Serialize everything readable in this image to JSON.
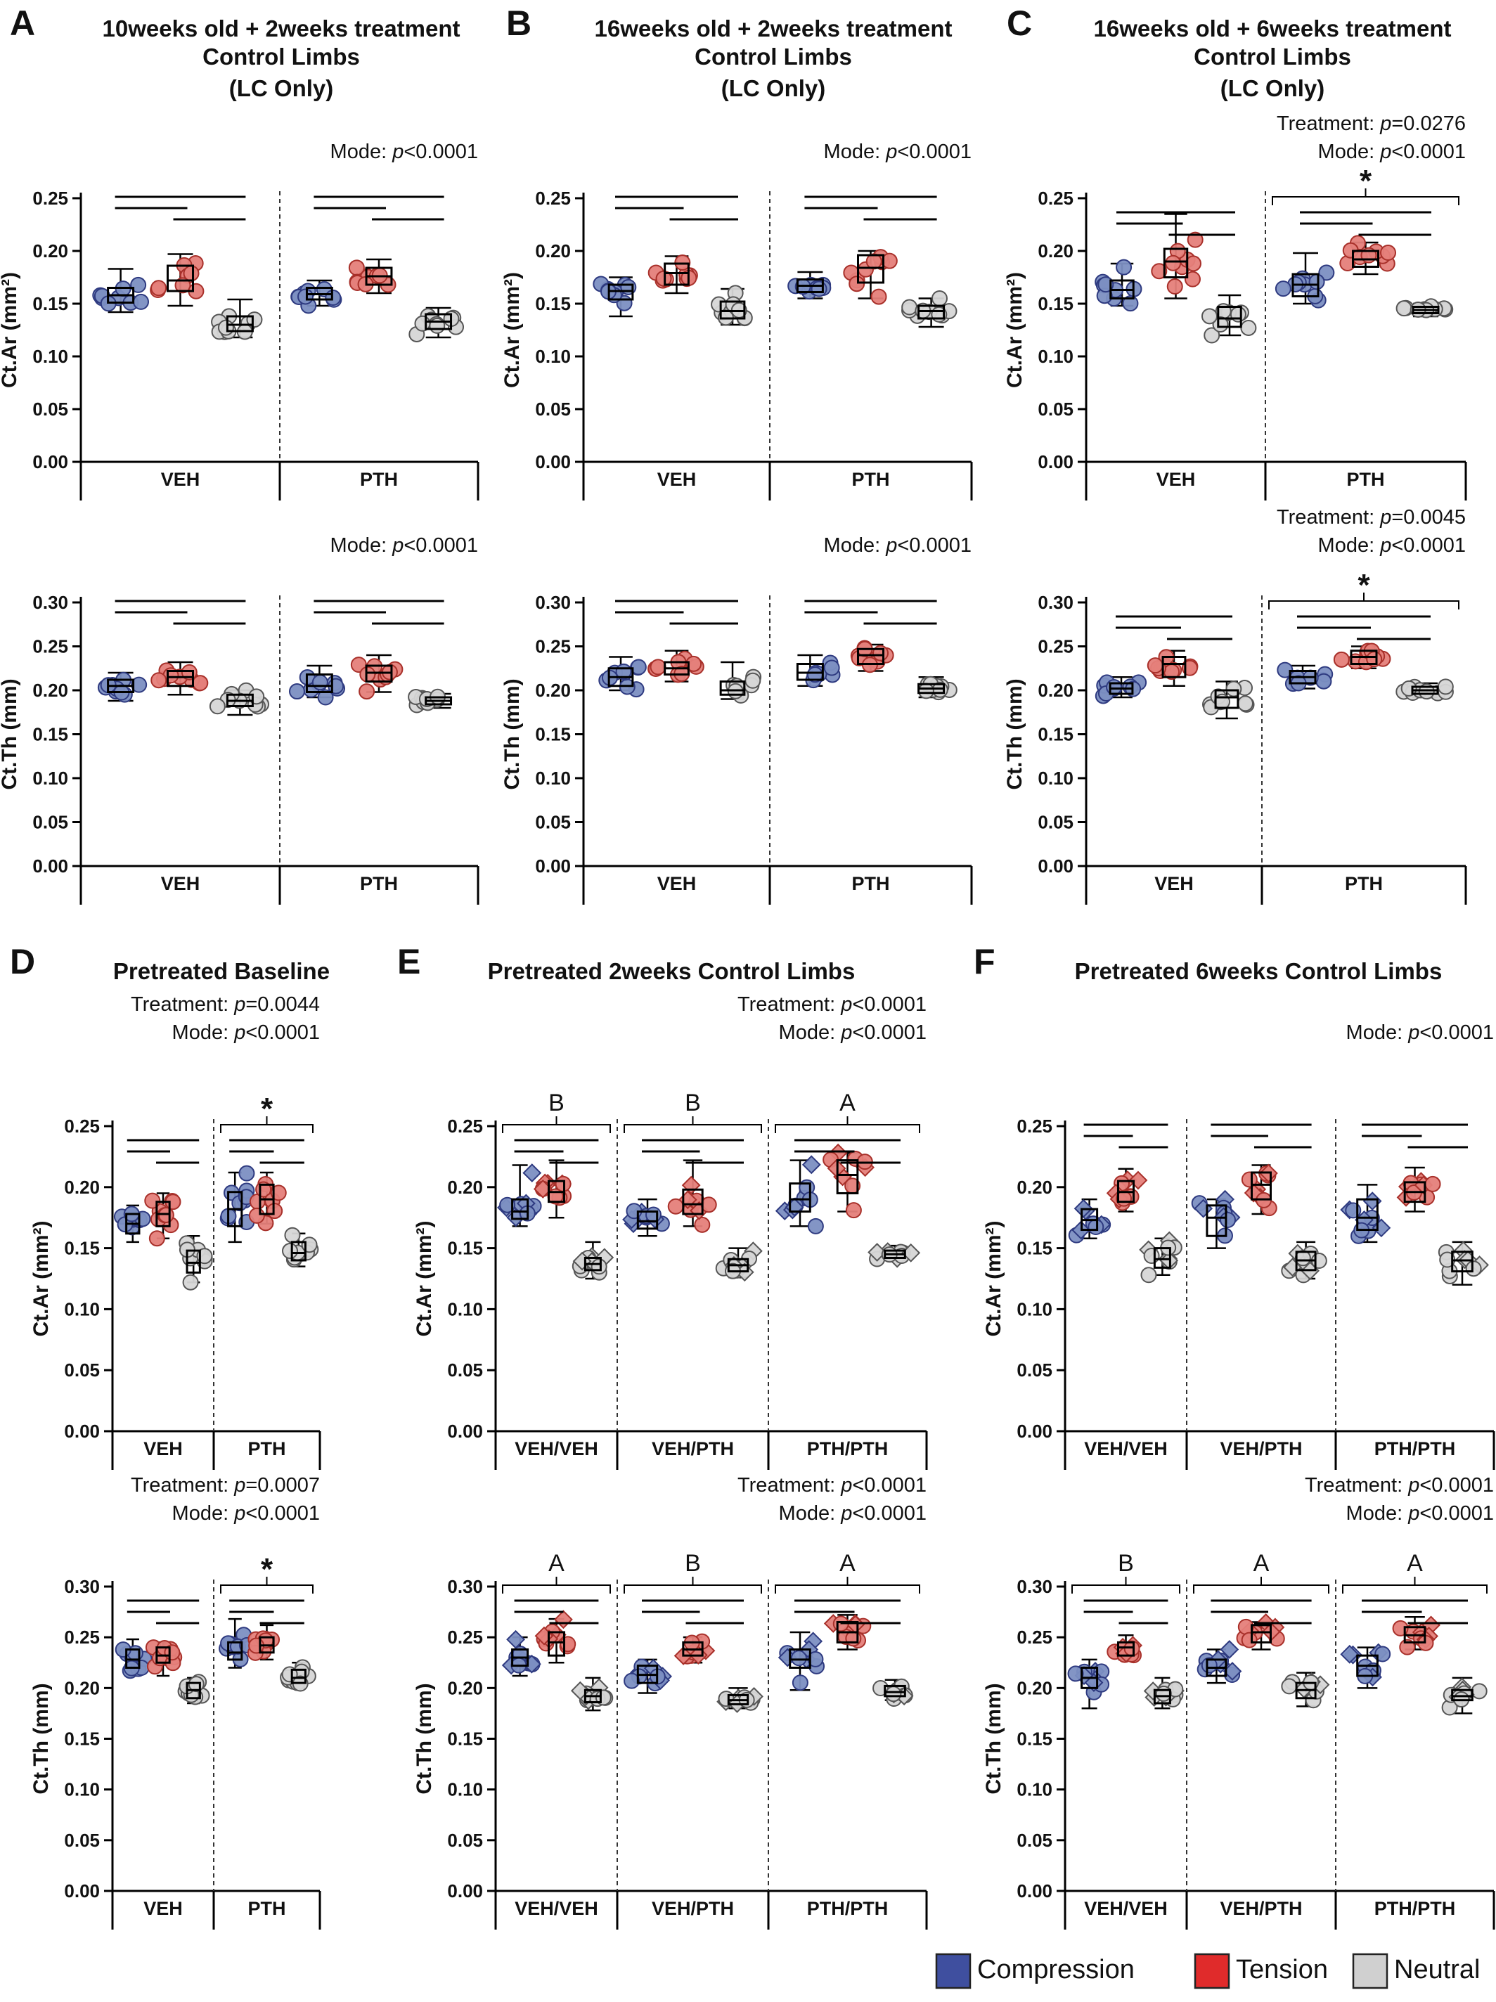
{
  "colors": {
    "compression": "#7c8fc2",
    "compression_dark": "#2e3a80",
    "tension": "#e5807a",
    "tension_dark": "#a8302a",
    "neutral": "#d6d6d6",
    "neutral_dark": "#555555",
    "box": "#000000"
  },
  "legend": [
    {
      "label": "Compression",
      "color": "#3f4f9f",
      "icon": "blue-square-icon"
    },
    {
      "label": "Tension",
      "color": "#e02b2b",
      "icon": "red-square-icon"
    },
    {
      "label": "Neutral",
      "color": "#d0d0d0",
      "icon": "gray-square-icon"
    }
  ],
  "chart_data": [
    {
      "type": "box",
      "panel": "A",
      "title": [
        "10weeks old + 2weeks treatment",
        "Control Limbs",
        "(LC Only)"
      ],
      "stats": [
        "Mode: p<0.0001"
      ],
      "ylabel": "Ct.Ar (mm²)",
      "ylim": [
        0,
        0.25
      ],
      "yticks": [
        "0.00",
        "0.05",
        "0.10",
        "0.15",
        "0.20",
        "0.25"
      ],
      "groups": [
        "VEH",
        "PTH"
      ],
      "series": [
        "Compression",
        "Tension",
        "Neutral"
      ],
      "values": [
        [
          [
            0.142,
            0.151,
            0.158,
            0.165,
            0.183
          ],
          [
            0.148,
            0.162,
            0.172,
            0.186,
            0.197
          ],
          [
            0.118,
            0.124,
            0.13,
            0.138,
            0.154
          ]
        ],
        [
          [
            0.148,
            0.154,
            0.159,
            0.165,
            0.172
          ],
          [
            0.16,
            0.168,
            0.176,
            0.184,
            0.192
          ],
          [
            0.118,
            0.126,
            0.133,
            0.14,
            0.146
          ]
        ]
      ],
      "marker": "circle"
    },
    {
      "type": "box",
      "panel": "B",
      "title": [
        "16weeks old + 2weeks treatment",
        "Control Limbs",
        "(LC Only)"
      ],
      "stats": [
        "Mode: p<0.0001"
      ],
      "ylabel": "Ct.Ar (mm²)",
      "ylim": [
        0,
        0.25
      ],
      "yticks": [
        "0.00",
        "0.05",
        "0.10",
        "0.15",
        "0.20",
        "0.25"
      ],
      "groups": [
        "VEH",
        "PTH"
      ],
      "series": [
        "Compression",
        "Tension",
        "Neutral"
      ],
      "values": [
        [
          [
            0.138,
            0.154,
            0.162,
            0.168,
            0.175
          ],
          [
            0.16,
            0.168,
            0.179,
            0.188,
            0.195
          ],
          [
            0.13,
            0.136,
            0.143,
            0.152,
            0.164
          ]
        ],
        [
          [
            0.155,
            0.161,
            0.167,
            0.173,
            0.18
          ],
          [
            0.155,
            0.17,
            0.184,
            0.196,
            0.2
          ],
          [
            0.128,
            0.136,
            0.143,
            0.148,
            0.155
          ]
        ]
      ],
      "marker": "circle"
    },
    {
      "type": "box",
      "panel": "C",
      "title": [
        "16weeks old + 6weeks treatment",
        "Control Limbs",
        "(LC Only)"
      ],
      "stats": [
        "Treatment: p=0.0276",
        "Mode: p<0.0001"
      ],
      "ylabel": "Ct.Ar (mm²)",
      "ylim": [
        0,
        0.25
      ],
      "yticks": [
        "0.00",
        "0.05",
        "0.10",
        "0.15",
        "0.20",
        "0.25"
      ],
      "groups": [
        "VEH",
        "PTH"
      ],
      "series": [
        "Compression",
        "Tension",
        "Neutral"
      ],
      "values": [
        [
          [
            0.148,
            0.155,
            0.163,
            0.172,
            0.188
          ],
          [
            0.155,
            0.175,
            0.19,
            0.202,
            0.235
          ],
          [
            0.12,
            0.128,
            0.136,
            0.147,
            0.158
          ]
        ],
        [
          [
            0.15,
            0.157,
            0.168,
            0.178,
            0.198
          ],
          [
            0.178,
            0.185,
            0.192,
            0.2,
            0.208
          ],
          [
            0.138,
            0.141,
            0.144,
            0.147,
            0.15
          ]
        ]
      ],
      "marker": "circle",
      "sig_star": 1
    },
    {
      "type": "box",
      "panel": "A",
      "stats": [
        "Mode: p<0.0001"
      ],
      "ylabel": "Ct.Th (mm)",
      "ylim": [
        0,
        0.3
      ],
      "yticks": [
        "0.00",
        "0.05",
        "0.10",
        "0.15",
        "0.20",
        "0.25",
        "0.30"
      ],
      "groups": [
        "VEH",
        "PTH"
      ],
      "series": [
        "Compression",
        "Tension",
        "Neutral"
      ],
      "values": [
        [
          [
            0.188,
            0.198,
            0.205,
            0.212,
            0.22
          ],
          [
            0.195,
            0.205,
            0.215,
            0.222,
            0.232
          ],
          [
            0.172,
            0.182,
            0.188,
            0.195,
            0.2
          ]
        ],
        [
          [
            0.192,
            0.198,
            0.205,
            0.218,
            0.228
          ],
          [
            0.198,
            0.21,
            0.22,
            0.228,
            0.24
          ],
          [
            0.18,
            0.184,
            0.188,
            0.192,
            0.196
          ]
        ]
      ],
      "marker": "circle"
    },
    {
      "type": "box",
      "panel": "B",
      "stats": [
        "Mode: p<0.0001"
      ],
      "ylabel": "Ct.Th (mm)",
      "ylim": [
        0,
        0.3
      ],
      "yticks": [
        "0.00",
        "0.05",
        "0.10",
        "0.15",
        "0.20",
        "0.25",
        "0.30"
      ],
      "groups": [
        "VEH",
        "PTH"
      ],
      "series": [
        "Compression",
        "Tension",
        "Neutral"
      ],
      "values": [
        [
          [
            0.2,
            0.205,
            0.215,
            0.225,
            0.238
          ],
          [
            0.21,
            0.218,
            0.225,
            0.232,
            0.245
          ],
          [
            0.19,
            0.195,
            0.2,
            0.21,
            0.232
          ]
        ],
        [
          [
            0.205,
            0.212,
            0.22,
            0.23,
            0.24
          ],
          [
            0.222,
            0.23,
            0.24,
            0.247,
            0.252
          ],
          [
            0.192,
            0.197,
            0.202,
            0.207,
            0.215
          ]
        ]
      ],
      "marker": "circle"
    },
    {
      "type": "box",
      "panel": "C",
      "stats": [
        "Treatment: p=0.0045",
        "Mode: p<0.0001"
      ],
      "ylabel": "Ct.Th (mm)",
      "ylim": [
        0,
        0.3
      ],
      "yticks": [
        "0.00",
        "0.05",
        "0.10",
        "0.15",
        "0.20",
        "0.25",
        "0.30"
      ],
      "groups": [
        "VEH",
        "PTH"
      ],
      "series": [
        "Compression",
        "Tension",
        "Neutral"
      ],
      "values": [
        [
          [
            0.192,
            0.196,
            0.202,
            0.208,
            0.215
          ],
          [
            0.205,
            0.215,
            0.23,
            0.238,
            0.245
          ],
          [
            0.168,
            0.18,
            0.192,
            0.2,
            0.21
          ]
        ],
        [
          [
            0.202,
            0.208,
            0.215,
            0.222,
            0.228
          ],
          [
            0.225,
            0.23,
            0.238,
            0.245,
            0.25
          ],
          [
            0.192,
            0.196,
            0.2,
            0.204,
            0.208
          ]
        ]
      ],
      "marker": "circle",
      "sig_star": 1
    },
    {
      "type": "box",
      "panel": "D",
      "title": [
        "Pretreated Baseline"
      ],
      "stats": [
        "Treatment: p=0.0044",
        "Mode: p<0.0001"
      ],
      "ylabel": "Ct.Ar (mm²)",
      "ylim": [
        0,
        0.25
      ],
      "yticks": [
        "0.00",
        "0.05",
        "0.10",
        "0.15",
        "0.20",
        "0.25"
      ],
      "groups": [
        "VEH",
        "PTH"
      ],
      "series": [
        "Compression",
        "Tension",
        "Neutral"
      ],
      "values": [
        [
          [
            0.155,
            0.162,
            0.17,
            0.178,
            0.185
          ],
          [
            0.158,
            0.168,
            0.178,
            0.188,
            0.195
          ],
          [
            0.122,
            0.13,
            0.138,
            0.148,
            0.16
          ]
        ],
        [
          [
            0.155,
            0.168,
            0.182,
            0.196,
            0.212
          ],
          [
            0.17,
            0.178,
            0.19,
            0.202,
            0.212
          ],
          [
            0.135,
            0.14,
            0.146,
            0.155,
            0.162
          ]
        ]
      ],
      "marker": "circle",
      "sig_star": 1
    },
    {
      "type": "box",
      "panel": "E",
      "title": [
        "Pretreated 2weeks Control Limbs"
      ],
      "stats": [
        "Treatment: p<0.0001",
        "Mode: p<0.0001"
      ],
      "ylabel": "Ct.Ar (mm²)",
      "ylim": [
        0,
        0.25
      ],
      "yticks": [
        "0.00",
        "0.05",
        "0.10",
        "0.15",
        "0.20",
        "0.25"
      ],
      "groups": [
        "VEH/VEH",
        "VEH/PTH",
        "PTH/PTH"
      ],
      "series": [
        "Compression",
        "Tension",
        "Neutral"
      ],
      "values": [
        [
          [
            0.168,
            0.174,
            0.18,
            0.19,
            0.218
          ],
          [
            0.175,
            0.188,
            0.196,
            0.205,
            0.222
          ],
          [
            0.125,
            0.132,
            0.137,
            0.142,
            0.155
          ]
        ],
        [
          [
            0.16,
            0.166,
            0.172,
            0.18,
            0.19
          ],
          [
            0.168,
            0.178,
            0.186,
            0.198,
            0.222
          ],
          [
            0.126,
            0.131,
            0.136,
            0.141,
            0.15
          ]
        ],
        [
          [
            0.168,
            0.18,
            0.19,
            0.203,
            0.222
          ],
          [
            0.18,
            0.195,
            0.21,
            0.222,
            0.228
          ],
          [
            0.14,
            0.142,
            0.145,
            0.148,
            0.152
          ]
        ]
      ],
      "marker": "mixed",
      "group_letters": [
        "B",
        "B",
        "A"
      ]
    },
    {
      "type": "box",
      "panel": "F",
      "title": [
        "Pretreated 6weeks Control Limbs"
      ],
      "stats": [
        "Mode: p<0.0001"
      ],
      "ylabel": "Ct.Ar (mm²)",
      "ylim": [
        0,
        0.25
      ],
      "yticks": [
        "0.00",
        "0.05",
        "0.10",
        "0.15",
        "0.20",
        "0.25"
      ],
      "groups": [
        "VEH/VEH",
        "VEH/PTH",
        "PTH/PTH"
      ],
      "series": [
        "Compression",
        "Tension",
        "Neutral"
      ],
      "values": [
        [
          [
            0.158,
            0.165,
            0.173,
            0.182,
            0.19
          ],
          [
            0.18,
            0.188,
            0.196,
            0.205,
            0.215
          ],
          [
            0.128,
            0.134,
            0.141,
            0.15,
            0.158
          ]
        ],
        [
          [
            0.15,
            0.16,
            0.175,
            0.185,
            0.19
          ],
          [
            0.178,
            0.19,
            0.202,
            0.212,
            0.218
          ],
          [
            0.125,
            0.132,
            0.14,
            0.147,
            0.155
          ]
        ],
        [
          [
            0.155,
            0.165,
            0.175,
            0.19,
            0.202
          ],
          [
            0.18,
            0.188,
            0.196,
            0.204,
            0.216
          ],
          [
            0.12,
            0.131,
            0.14,
            0.147,
            0.155
          ]
        ]
      ],
      "marker": "mixed"
    },
    {
      "type": "box",
      "panel": "D",
      "stats": [
        "Treatment: p=0.0007",
        "Mode: p<0.0001"
      ],
      "ylabel": "Ct.Th (mm)",
      "ylim": [
        0,
        0.3
      ],
      "yticks": [
        "0.00",
        "0.05",
        "0.10",
        "0.15",
        "0.20",
        "0.25",
        "0.30"
      ],
      "groups": [
        "VEH",
        "PTH"
      ],
      "series": [
        "Compression",
        "Tension",
        "Neutral"
      ],
      "values": [
        [
          [
            0.212,
            0.22,
            0.228,
            0.238,
            0.248
          ],
          [
            0.212,
            0.225,
            0.232,
            0.24,
            0.245
          ],
          [
            0.185,
            0.19,
            0.198,
            0.205,
            0.21
          ]
        ],
        [
          [
            0.22,
            0.228,
            0.235,
            0.245,
            0.268
          ],
          [
            0.228,
            0.235,
            0.242,
            0.25,
            0.262
          ],
          [
            0.2,
            0.205,
            0.21,
            0.218,
            0.225
          ]
        ]
      ],
      "marker": "circle",
      "sig_star": 1
    },
    {
      "type": "box",
      "panel": "E",
      "stats": [
        "Treatment: p<0.0001",
        "Mode: p<0.0001"
      ],
      "ylabel": "Ct.Th (mm)",
      "ylim": [
        0,
        0.3
      ],
      "yticks": [
        "0.00",
        "0.05",
        "0.10",
        "0.15",
        "0.20",
        "0.25",
        "0.30"
      ],
      "groups": [
        "VEH/VEH",
        "VEH/PTH",
        "PTH/PTH"
      ],
      "series": [
        "Compression",
        "Tension",
        "Neutral"
      ],
      "values": [
        [
          [
            0.212,
            0.222,
            0.23,
            0.238,
            0.25
          ],
          [
            0.225,
            0.232,
            0.245,
            0.255,
            0.268
          ],
          [
            0.178,
            0.186,
            0.192,
            0.198,
            0.21
          ]
        ],
        [
          [
            0.195,
            0.205,
            0.213,
            0.222,
            0.228
          ],
          [
            0.225,
            0.232,
            0.238,
            0.245,
            0.25
          ],
          [
            0.18,
            0.184,
            0.188,
            0.193,
            0.2
          ]
        ],
        [
          [
            0.198,
            0.22,
            0.228,
            0.238,
            0.255
          ],
          [
            0.238,
            0.245,
            0.255,
            0.265,
            0.272
          ],
          [
            0.188,
            0.192,
            0.196,
            0.202,
            0.208
          ]
        ]
      ],
      "marker": "mixed",
      "group_letters": [
        "A",
        "B",
        "A"
      ]
    },
    {
      "type": "box",
      "panel": "F",
      "stats": [
        "Treatment: p<0.0001",
        "Mode: p<0.0001"
      ],
      "ylabel": "Ct.Th (mm)",
      "ylim": [
        0,
        0.3
      ],
      "yticks": [
        "0.00",
        "0.05",
        "0.10",
        "0.15",
        "0.20",
        "0.25",
        "0.30"
      ],
      "groups": [
        "VEH/VEH",
        "VEH/PTH",
        "PTH/PTH"
      ],
      "series": [
        "Compression",
        "Tension",
        "Neutral"
      ],
      "values": [
        [
          [
            0.18,
            0.2,
            0.21,
            0.22,
            0.228
          ],
          [
            0.228,
            0.232,
            0.24,
            0.245,
            0.252
          ],
          [
            0.18,
            0.185,
            0.192,
            0.198,
            0.21
          ]
        ],
        [
          [
            0.205,
            0.212,
            0.22,
            0.228,
            0.238
          ],
          [
            0.238,
            0.245,
            0.255,
            0.262,
            0.265
          ],
          [
            0.182,
            0.19,
            0.198,
            0.205,
            0.215
          ]
        ],
        [
          [
            0.2,
            0.212,
            0.222,
            0.232,
            0.24
          ],
          [
            0.238,
            0.245,
            0.252,
            0.26,
            0.27
          ],
          [
            0.175,
            0.188,
            0.192,
            0.198,
            0.21
          ]
        ]
      ],
      "marker": "mixed",
      "group_letters": [
        "B",
        "A",
        "A"
      ]
    }
  ],
  "panel_letters": [
    "A",
    "B",
    "C",
    "D",
    "E",
    "F"
  ]
}
